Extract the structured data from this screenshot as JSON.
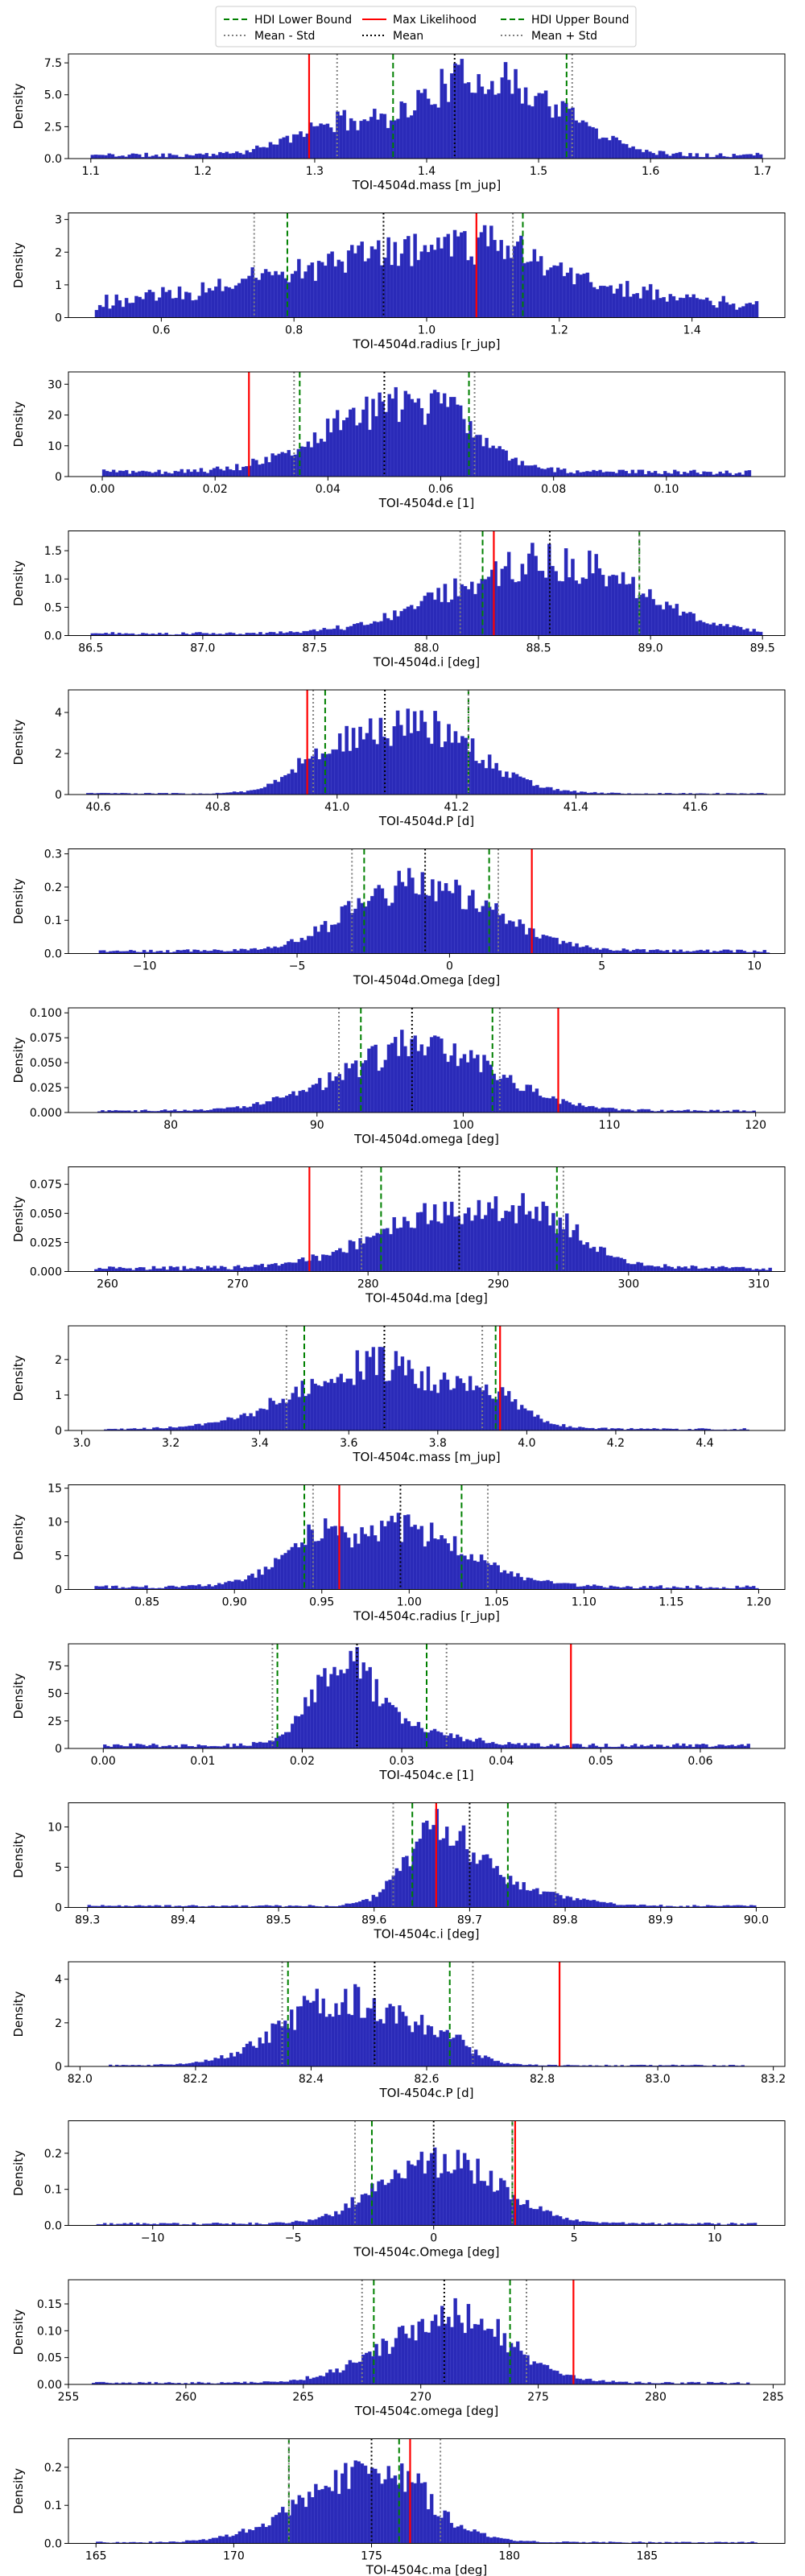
{
  "legend": {
    "entries": [
      {
        "label": "HDI Lower Bound",
        "color": "#008000",
        "style": "dashed"
      },
      {
        "label": "Mean - Std",
        "color": "#808080",
        "style": "dotted"
      },
      {
        "label": "Max Likelihood",
        "color": "#ff0000",
        "style": "solid"
      },
      {
        "label": "Mean",
        "color": "#000000",
        "style": "dotted"
      },
      {
        "label": "HDI Upper Bound",
        "color": "#008000",
        "style": "dashed"
      },
      {
        "label": "Mean + Std",
        "color": "#808080",
        "style": "dotted"
      }
    ]
  },
  "colors": {
    "bar_fill": "#2a2ab8",
    "bar_edge": "#4646cc"
  },
  "chart_data": [
    {
      "type": "bar",
      "xlabel": "TOI-4504d.mass [m_jup]",
      "ylabel": "Density",
      "xlim": [
        1.08,
        1.72
      ],
      "ylim": [
        0,
        8.2
      ],
      "xticks": [
        1.1,
        1.2,
        1.3,
        1.4,
        1.5,
        1.6,
        1.7
      ],
      "xtick_labels": [
        "1.1",
        "1.2",
        "1.3",
        "1.4",
        "1.5",
        "1.6",
        "1.7"
      ],
      "yticks": [
        0,
        2.5,
        5,
        7.5
      ],
      "ytick_labels": [
        "0.0",
        "2.5",
        "5.0",
        "7.5"
      ],
      "dist": {
        "range": [
          1.1,
          1.7
        ],
        "n": 200,
        "peaks": [
          {
            "mu": 1.44,
            "s": 0.05,
            "a": 5.8
          },
          {
            "mu": 1.32,
            "s": 0.04,
            "a": 2.3
          },
          {
            "mu": 1.52,
            "s": 0.04,
            "a": 2.0
          }
        ],
        "base": 0.3,
        "seed": 11
      },
      "lines": {
        "hdi_low": 1.37,
        "hdi_high": 1.525,
        "max_likelihood": 1.295,
        "mean": 1.425,
        "mean_minus_std": 1.32,
        "mean_plus_std": 1.53
      }
    },
    {
      "type": "bar",
      "xlabel": "TOI-4504d.radius [r_jup]",
      "ylabel": "Density",
      "xlim": [
        0.46,
        1.54
      ],
      "ylim": [
        0,
        3.2
      ],
      "xticks": [
        0.6,
        0.8,
        1.0,
        1.2,
        1.4
      ],
      "xtick_labels": [
        "0.6",
        "0.8",
        "1.0",
        "1.2",
        "1.4"
      ],
      "yticks": [
        0,
        1,
        2,
        3
      ],
      "ytick_labels": [
        "0",
        "1",
        "2",
        "3"
      ],
      "dist": {
        "range": [
          0.5,
          1.5
        ],
        "n": 200,
        "peaks": [
          {
            "mu": 0.98,
            "s": 0.2,
            "a": 1.7
          },
          {
            "mu": 1.12,
            "s": 0.07,
            "a": 0.5
          }
        ],
        "base": 0.4,
        "seed": 23
      },
      "lines": {
        "hdi_low": 0.79,
        "hdi_high": 1.145,
        "max_likelihood": 1.075,
        "mean": 0.935,
        "mean_minus_std": 0.74,
        "mean_plus_std": 1.13
      }
    },
    {
      "type": "bar",
      "xlabel": "TOI-4504d.e [1]",
      "ylabel": "Density",
      "xlim": [
        -0.006,
        0.121
      ],
      "ylim": [
        0,
        34
      ],
      "xticks": [
        0,
        0.02,
        0.04,
        0.06,
        0.08,
        0.1
      ],
      "xtick_labels": [
        "0.00",
        "0.02",
        "0.04",
        "0.06",
        "0.08",
        "0.10"
      ],
      "yticks": [
        0,
        10,
        20,
        30
      ],
      "ytick_labels": [
        "0",
        "10",
        "20",
        "30"
      ],
      "dist": {
        "range": [
          0,
          0.115
        ],
        "n": 200,
        "peaks": [
          {
            "mu": 0.05,
            "s": 0.012,
            "a": 20
          },
          {
            "mu": 0.062,
            "s": 0.006,
            "a": 8
          }
        ],
        "base": 1.5,
        "seed": 37
      },
      "lines": {
        "hdi_low": 0.035,
        "hdi_high": 0.065,
        "max_likelihood": 0.026,
        "mean": 0.05,
        "mean_minus_std": 0.034,
        "mean_plus_std": 0.066
      }
    },
    {
      "type": "bar",
      "xlabel": "TOI-4504d.i [deg]",
      "ylabel": "Density",
      "xlim": [
        86.4,
        89.6
      ],
      "ylim": [
        0,
        1.85
      ],
      "xticks": [
        86.5,
        87,
        87.5,
        88,
        88.5,
        89,
        89.5
      ],
      "xtick_labels": [
        "86.5",
        "87.0",
        "87.5",
        "88.0",
        "88.5",
        "89.0",
        "89.5"
      ],
      "yticks": [
        0,
        0.5,
        1,
        1.5
      ],
      "ytick_labels": [
        "0.0",
        "0.5",
        "1.0",
        "1.5"
      ],
      "dist": {
        "range": [
          86.5,
          89.5
        ],
        "n": 200,
        "peaks": [
          {
            "mu": 88.6,
            "s": 0.35,
            "a": 1.2
          },
          {
            "mu": 88.1,
            "s": 0.3,
            "a": 0.3
          }
        ],
        "base": 0.04,
        "seed": 41
      },
      "lines": {
        "hdi_low": 88.25,
        "hdi_high": 88.95,
        "max_likelihood": 88.3,
        "mean": 88.55,
        "mean_minus_std": 88.15,
        "mean_plus_std": 88.95
      }
    },
    {
      "type": "bar",
      "xlabel": "TOI-4504d.P [d]",
      "ylabel": "Density",
      "xlim": [
        40.55,
        41.75
      ],
      "ylim": [
        0,
        5.1
      ],
      "xticks": [
        40.6,
        40.8,
        41.0,
        41.2,
        41.4,
        41.6
      ],
      "xtick_labels": [
        "40.6",
        "40.8",
        "41.0",
        "41.2",
        "41.4",
        "41.6"
      ],
      "yticks": [
        0,
        2,
        4
      ],
      "ytick_labels": [
        "0",
        "2",
        "4"
      ],
      "dist": {
        "range": [
          40.58,
          41.72
        ],
        "n": 200,
        "peaks": [
          {
            "mu": 41.13,
            "s": 0.1,
            "a": 3.4
          },
          {
            "mu": 40.97,
            "s": 0.05,
            "a": 1.2
          }
        ],
        "base": 0.05,
        "seed": 53
      },
      "lines": {
        "hdi_low": 40.98,
        "hdi_high": 41.22,
        "max_likelihood": 40.95,
        "mean": 41.08,
        "mean_minus_std": 40.96,
        "mean_plus_std": 41.22
      }
    },
    {
      "type": "bar",
      "xlabel": "TOI-4504d.Omega [deg]",
      "ylabel": "Density",
      "xlim": [
        -12.5,
        11
      ],
      "ylim": [
        0,
        0.315
      ],
      "xticks": [
        -10,
        -5,
        0,
        5,
        10
      ],
      "xtick_labels": [
        "−10",
        "−5",
        "0",
        "5",
        "10"
      ],
      "yticks": [
        0,
        0.1,
        0.2,
        0.3
      ],
      "ytick_labels": [
        "0.0",
        "0.1",
        "0.2",
        "0.3"
      ],
      "dist": {
        "range": [
          -11.5,
          10.5
        ],
        "n": 200,
        "peaks": [
          {
            "mu": -0.5,
            "s": 2.2,
            "a": 0.17
          },
          {
            "mu": -2.5,
            "s": 1.5,
            "a": 0.05
          }
        ],
        "base": 0.008,
        "seed": 61
      },
      "lines": {
        "hdi_low": -2.8,
        "hdi_high": 1.3,
        "max_likelihood": 2.7,
        "mean": -0.8,
        "mean_minus_std": -3.2,
        "mean_plus_std": 1.6
      }
    },
    {
      "type": "bar",
      "xlabel": "TOI-4504d.omega [deg]",
      "ylabel": "Density",
      "xlim": [
        73,
        122
      ],
      "ylim": [
        0,
        0.105
      ],
      "xticks": [
        80,
        90,
        100,
        110,
        120
      ],
      "xtick_labels": [
        "80",
        "90",
        "100",
        "110",
        "120"
      ],
      "yticks": [
        0,
        0.025,
        0.05,
        0.075,
        0.1
      ],
      "ytick_labels": [
        "0.000",
        "0.025",
        "0.050",
        "0.075",
        "0.100"
      ],
      "dist": {
        "range": [
          75,
          120
        ],
        "n": 200,
        "peaks": [
          {
            "mu": 98,
            "s": 4.5,
            "a": 0.06
          },
          {
            "mu": 92,
            "s": 4,
            "a": 0.015
          }
        ],
        "base": 0.002,
        "seed": 71
      },
      "lines": {
        "hdi_low": 93,
        "hdi_high": 102,
        "max_likelihood": 106.5,
        "mean": 96.5,
        "mean_minus_std": 91.5,
        "mean_plus_std": 102.5
      }
    },
    {
      "type": "bar",
      "xlabel": "TOI-4504d.ma [deg]",
      "ylabel": "Density",
      "xlim": [
        257,
        312
      ],
      "ylim": [
        0,
        0.09
      ],
      "xticks": [
        260,
        270,
        280,
        290,
        300,
        310
      ],
      "xtick_labels": [
        "260",
        "270",
        "280",
        "290",
        "300",
        "310"
      ],
      "yticks": [
        0,
        0.025,
        0.05,
        0.075
      ],
      "ytick_labels": [
        "0.000",
        "0.025",
        "0.050",
        "0.075"
      ],
      "dist": {
        "range": [
          259,
          311
        ],
        "n": 200,
        "peaks": [
          {
            "mu": 287,
            "s": 6,
            "a": 0.05
          },
          {
            "mu": 294,
            "s": 2.5,
            "a": 0.02
          }
        ],
        "base": 0.003,
        "seed": 83
      },
      "lines": {
        "hdi_low": 281,
        "hdi_high": 294.5,
        "max_likelihood": 275.5,
        "mean": 287,
        "mean_minus_std": 279.5,
        "mean_plus_std": 295
      }
    },
    {
      "type": "bar",
      "xlabel": "TOI-4504c.mass [m_jup]",
      "ylabel": "Density",
      "xlim": [
        2.97,
        4.58
      ],
      "ylim": [
        0,
        2.95
      ],
      "xticks": [
        3.0,
        3.2,
        3.4,
        3.6,
        3.8,
        4.0,
        4.2,
        4.4
      ],
      "xtick_labels": [
        "3.0",
        "3.2",
        "3.4",
        "3.6",
        "3.8",
        "4.0",
        "4.2",
        "4.4"
      ],
      "yticks": [
        0,
        1,
        2
      ],
      "ytick_labels": [
        "0",
        "1",
        "2"
      ],
      "dist": {
        "range": [
          3.05,
          4.5
        ],
        "n": 200,
        "peaks": [
          {
            "mu": 3.66,
            "s": 0.17,
            "a": 1.8
          },
          {
            "mu": 3.92,
            "s": 0.06,
            "a": 0.6
          }
        ],
        "base": 0.04,
        "seed": 97
      },
      "lines": {
        "hdi_low": 3.5,
        "hdi_high": 3.93,
        "max_likelihood": 3.94,
        "mean": 3.68,
        "mean_minus_std": 3.46,
        "mean_plus_std": 3.9
      }
    },
    {
      "type": "bar",
      "xlabel": "TOI-4504c.radius [r_jup]",
      "ylabel": "Density",
      "xlim": [
        0.805,
        1.215
      ],
      "ylim": [
        0,
        15.5
      ],
      "xticks": [
        0.85,
        0.9,
        0.95,
        1.0,
        1.05,
        1.1,
        1.15,
        1.2
      ],
      "xtick_labels": [
        "0.85",
        "0.90",
        "0.95",
        "1.00",
        "1.05",
        "1.10",
        "1.15",
        "1.20"
      ],
      "yticks": [
        0,
        5,
        10,
        15
      ],
      "ytick_labels": [
        "0",
        "5",
        "10",
        "15"
      ],
      "dist": {
        "range": [
          0.82,
          1.2
        ],
        "n": 200,
        "peaks": [
          {
            "mu": 0.99,
            "s": 0.04,
            "a": 9
          },
          {
            "mu": 0.94,
            "s": 0.015,
            "a": 3
          }
        ],
        "base": 0.4,
        "seed": 101
      },
      "lines": {
        "hdi_low": 0.94,
        "hdi_high": 1.03,
        "max_likelihood": 0.96,
        "mean": 0.995,
        "mean_minus_std": 0.945,
        "mean_plus_std": 1.045
      }
    },
    {
      "type": "bar",
      "xlabel": "TOI-4504c.e [1]",
      "ylabel": "Density",
      "xlim": [
        -0.0035,
        0.0685
      ],
      "ylim": [
        0,
        95
      ],
      "xticks": [
        0,
        0.01,
        0.02,
        0.03,
        0.04,
        0.05,
        0.06
      ],
      "xtick_labels": [
        "0.00",
        "0.01",
        "0.02",
        "0.03",
        "0.04",
        "0.05",
        "0.06"
      ],
      "yticks": [
        0,
        25,
        50,
        75
      ],
      "ytick_labels": [
        "0",
        "25",
        "50",
        "75"
      ],
      "dist": {
        "range": [
          0,
          0.065
        ],
        "n": 200,
        "peaks": [
          {
            "mu": 0.024,
            "s": 0.003,
            "a": 70
          },
          {
            "mu": 0.03,
            "s": 0.005,
            "a": 15
          }
        ],
        "base": 3,
        "seed": 113
      },
      "lines": {
        "hdi_low": 0.0175,
        "hdi_high": 0.0325,
        "max_likelihood": 0.047,
        "mean": 0.0255,
        "mean_minus_std": 0.017,
        "mean_plus_std": 0.0345
      }
    },
    {
      "type": "bar",
      "xlabel": "TOI-4504c.i [deg]",
      "ylabel": "Density",
      "xlim": [
        89.28,
        90.03
      ],
      "ylim": [
        0,
        13
      ],
      "xticks": [
        89.3,
        89.4,
        89.5,
        89.6,
        89.7,
        89.8,
        89.9,
        90.0
      ],
      "xtick_labels": [
        "89.3",
        "89.4",
        "89.5",
        "89.6",
        "89.7",
        "89.8",
        "89.9",
        "90.0"
      ],
      "yticks": [
        0,
        5,
        10
      ],
      "ytick_labels": [
        "0",
        "5",
        "10"
      ],
      "dist": {
        "range": [
          89.3,
          90.0
        ],
        "n": 200,
        "peaks": [
          {
            "mu": 89.67,
            "s": 0.035,
            "a": 9
          },
          {
            "mu": 89.75,
            "s": 0.05,
            "a": 2
          }
        ],
        "base": 0.2,
        "seed": 127
      },
      "lines": {
        "hdi_low": 89.64,
        "hdi_high": 89.74,
        "max_likelihood": 89.665,
        "mean": 89.7,
        "mean_minus_std": 89.62,
        "mean_plus_std": 89.79
      }
    },
    {
      "type": "bar",
      "xlabel": "TOI-4504c.P [d]",
      "ylabel": "Density",
      "xlim": [
        81.98,
        83.22
      ],
      "ylim": [
        0,
        4.8
      ],
      "xticks": [
        82.0,
        82.2,
        82.4,
        82.6,
        82.8,
        83.0,
        83.2
      ],
      "xtick_labels": [
        "82.0",
        "82.2",
        "82.4",
        "82.6",
        "82.8",
        "83.0",
        "83.2"
      ],
      "yticks": [
        0,
        2,
        4
      ],
      "ytick_labels": [
        "0",
        "2",
        "4"
      ],
      "dist": {
        "range": [
          82.05,
          83.15
        ],
        "n": 200,
        "peaks": [
          {
            "mu": 82.45,
            "s": 0.1,
            "a": 3.0
          },
          {
            "mu": 82.62,
            "s": 0.05,
            "a": 1.0
          }
        ],
        "base": 0.05,
        "seed": 131
      },
      "lines": {
        "hdi_low": 82.36,
        "hdi_high": 82.64,
        "max_likelihood": 82.83,
        "mean": 82.51,
        "mean_minus_std": 82.35,
        "mean_plus_std": 82.68
      }
    },
    {
      "type": "bar",
      "xlabel": "TOI-4504c.Omega [deg]",
      "ylabel": "Density",
      "xlim": [
        -13,
        12.5
      ],
      "ylim": [
        0,
        0.29
      ],
      "xticks": [
        -10,
        -5,
        0,
        5,
        10
      ],
      "xtick_labels": [
        "−10",
        "−5",
        "0",
        "5",
        "10"
      ],
      "yticks": [
        0,
        0.1,
        0.2
      ],
      "ytick_labels": [
        "0.0",
        "0.1",
        "0.2"
      ],
      "dist": {
        "range": [
          -12,
          11.5
        ],
        "n": 200,
        "peaks": [
          {
            "mu": 0.5,
            "s": 2.0,
            "a": 0.16
          },
          {
            "mu": -1.5,
            "s": 1.2,
            "a": 0.04
          }
        ],
        "base": 0.005,
        "seed": 139
      },
      "lines": {
        "hdi_low": -2.2,
        "hdi_high": 2.8,
        "max_likelihood": 2.9,
        "mean": 0,
        "mean_minus_std": -2.8,
        "mean_plus_std": 2.8
      }
    },
    {
      "type": "bar",
      "xlabel": "TOI-4504c.omega [deg]",
      "ylabel": "Density",
      "xlim": [
        255,
        285.5
      ],
      "ylim": [
        0,
        0.195
      ],
      "xticks": [
        255,
        260,
        265,
        270,
        275,
        280,
        285
      ],
      "xtick_labels": [
        "255",
        "260",
        "265",
        "270",
        "275",
        "280",
        "285"
      ],
      "yticks": [
        0,
        0.05,
        0.1,
        0.15
      ],
      "ytick_labels": [
        "0.00",
        "0.05",
        "0.10",
        "0.15"
      ],
      "dist": {
        "range": [
          256,
          284
        ],
        "n": 200,
        "peaks": [
          {
            "mu": 271,
            "s": 2.6,
            "a": 0.11
          },
          {
            "mu": 272.5,
            "s": 1,
            "a": 0.03
          }
        ],
        "base": 0.003,
        "seed": 149
      },
      "lines": {
        "hdi_low": 268,
        "hdi_high": 273.8,
        "max_likelihood": 276.5,
        "mean": 271,
        "mean_minus_std": 267.5,
        "mean_plus_std": 274.5
      }
    },
    {
      "type": "bar",
      "xlabel": "TOI-4504c.ma [deg]",
      "ylabel": "Density",
      "xlim": [
        164,
        190
      ],
      "ylim": [
        0,
        0.275
      ],
      "xticks": [
        165,
        170,
        175,
        180,
        185
      ],
      "xtick_labels": [
        "165",
        "170",
        "175",
        "180",
        "185"
      ],
      "yticks": [
        0,
        0.1,
        0.2
      ],
      "ytick_labels": [
        "0.0",
        "0.1",
        "0.2"
      ],
      "dist": {
        "range": [
          165,
          189
        ],
        "n": 200,
        "peaks": [
          {
            "mu": 174.5,
            "s": 2.2,
            "a": 0.17
          },
          {
            "mu": 176.5,
            "s": 0.8,
            "a": 0.04
          }
        ],
        "base": 0.003,
        "seed": 157
      },
      "lines": {
        "hdi_low": 172,
        "hdi_high": 176,
        "max_likelihood": 176.4,
        "mean": 175,
        "mean_minus_std": 172,
        "mean_plus_std": 177.5
      }
    }
  ]
}
